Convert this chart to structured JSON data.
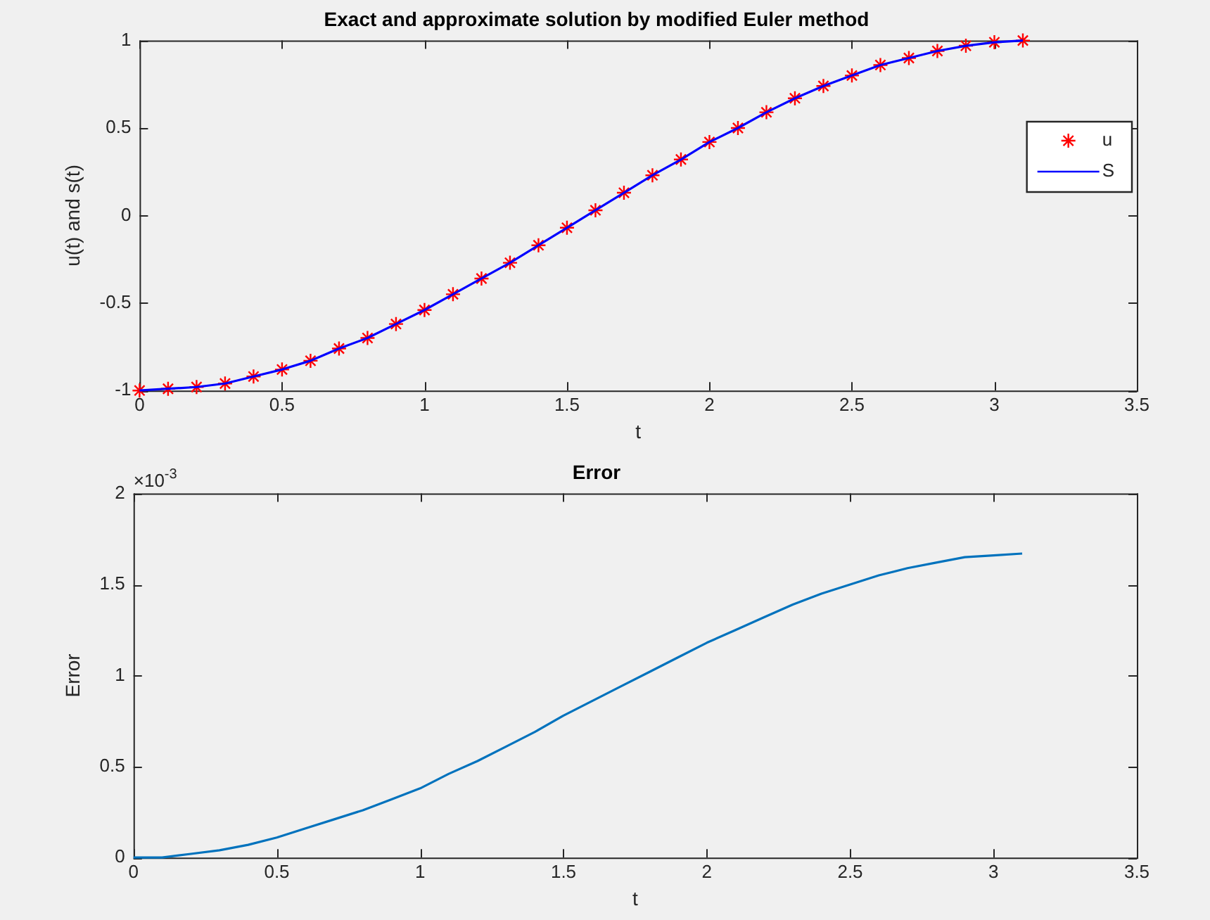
{
  "chart_data": [
    {
      "type": "line",
      "title": "Exact and approximate solution by modified Euler method",
      "xlabel": "t",
      "ylabel": "u(t) and s(t)",
      "x": [
        0,
        0.1,
        0.2,
        0.3,
        0.4,
        0.5,
        0.6,
        0.7,
        0.8,
        0.9,
        1,
        1.1,
        1.2,
        1.3,
        1.4,
        1.5,
        1.6,
        1.7,
        1.8,
        1.9,
        2,
        2.1,
        2.2,
        2.3,
        2.4,
        2.5,
        2.6,
        2.7,
        2.8,
        2.9,
        3,
        3.1
      ],
      "series": [
        {
          "name": "u",
          "type": "scatter",
          "marker": "cross",
          "color": "#ff0000",
          "values": [
            -1,
            -0.99,
            -0.98,
            -0.96,
            -0.92,
            -0.88,
            -0.83,
            -0.76,
            -0.7,
            -0.62,
            -0.54,
            -0.45,
            -0.36,
            -0.27,
            -0.17,
            -0.07,
            0.03,
            0.13,
            0.23,
            0.32,
            0.42,
            0.5,
            0.59,
            0.67,
            0.74,
            0.8,
            0.86,
            0.9,
            0.94,
            0.97,
            0.99,
            1
          ]
        },
        {
          "name": "S",
          "type": "line",
          "color": "#0000ff",
          "values": [
            -1,
            -0.99,
            -0.98,
            -0.96,
            -0.92,
            -0.88,
            -0.83,
            -0.76,
            -0.7,
            -0.62,
            -0.54,
            -0.45,
            -0.36,
            -0.27,
            -0.17,
            -0.07,
            0.03,
            0.13,
            0.23,
            0.32,
            0.42,
            0.5,
            0.59,
            0.67,
            0.74,
            0.8,
            0.86,
            0.9,
            0.94,
            0.97,
            0.99,
            1
          ]
        }
      ],
      "xlim": [
        0,
        3.5
      ],
      "xticks": [
        0,
        0.5,
        1,
        1.5,
        2,
        2.5,
        3,
        3.5
      ],
      "ylim": [
        -1,
        1
      ],
      "yticks": [
        -1,
        -0.5,
        0,
        0.5,
        1
      ],
      "grid": false,
      "legend": "top right"
    },
    {
      "type": "line",
      "title": "Error",
      "xlabel": "t",
      "ylabel": "Error",
      "x": [
        0,
        0.1,
        0.2,
        0.3,
        0.4,
        0.5,
        0.6,
        0.7,
        0.8,
        0.9,
        1,
        1.1,
        1.2,
        1.3,
        1.4,
        1.5,
        1.6,
        1.7,
        1.8,
        1.9,
        2,
        2.1,
        2.2,
        2.3,
        2.4,
        2.5,
        2.6,
        2.7,
        2.8,
        2.9,
        3,
        3.1
      ],
      "series": [
        {
          "color": "#0072bd",
          "values": [
            0,
            0,
            0.02,
            0.04,
            0.07,
            0.11,
            0.16,
            0.21,
            0.26,
            0.32,
            0.38,
            0.46,
            0.53,
            0.61,
            0.69,
            0.78,
            0.86,
            0.94,
            1.02,
            1.1,
            1.18,
            1.25,
            1.32,
            1.39,
            1.45,
            1.5,
            1.55,
            1.59,
            1.62,
            1.65,
            1.66,
            1.67
          ]
        }
      ],
      "xlim": [
        0,
        3.5
      ],
      "xticks": [
        0,
        0.5,
        1,
        1.5,
        2,
        2.5,
        3,
        3.5
      ],
      "ylim": [
        0,
        2
      ],
      "yticks": [
        0,
        0.5,
        1,
        1.5,
        2
      ],
      "annotations": [
        "×10$^{-3}$"
      ],
      "grid": false,
      "legend": false
    }
  ]
}
